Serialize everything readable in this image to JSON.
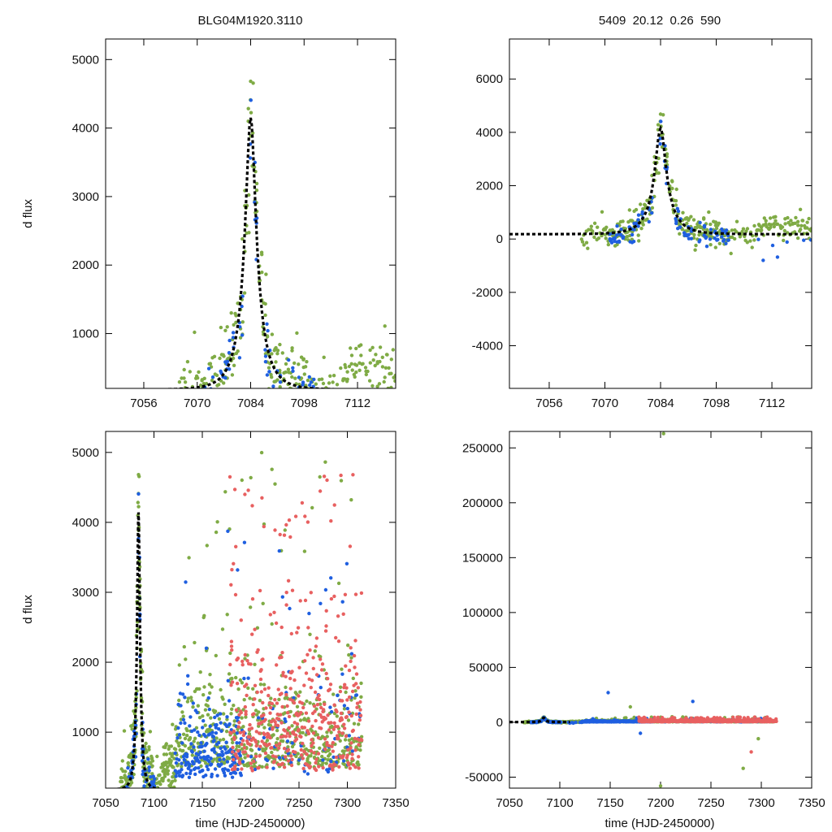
{
  "chart_data": [
    {
      "type": "scatter",
      "title": "BLG04M1920.3110",
      "xlabel": "",
      "ylabel": "d flux",
      "xlim": [
        7046,
        7122
      ],
      "ylim": [
        200,
        5300
      ],
      "xticks": [
        7056,
        7070,
        7084,
        7098,
        7112
      ],
      "yticks": [
        1000,
        2000,
        3000,
        4000,
        5000
      ],
      "series": [
        {
          "name": "blue",
          "color": "#1f5fe0"
        },
        {
          "name": "green",
          "color": "#7fab45"
        }
      ],
      "model": {
        "t0": 7084,
        "u0": 0.26,
        "tE": 5.3,
        "base": 180,
        "peak": 4150
      }
    },
    {
      "type": "scatter",
      "title": "5409  20.12  0.26  590",
      "xlabel": "",
      "ylabel": "",
      "xlim": [
        7046,
        7122
      ],
      "ylim": [
        -5600,
        7500
      ],
      "xticks": [
        7056,
        7070,
        7084,
        7098,
        7112
      ],
      "yticks": [
        -4000,
        -2000,
        0,
        2000,
        4000,
        6000
      ],
      "series": [
        {
          "name": "blue",
          "color": "#1f5fe0"
        },
        {
          "name": "green",
          "color": "#7fab45"
        }
      ],
      "model": {
        "t0": 7084,
        "u0": 0.26,
        "tE": 5.3,
        "base": 180,
        "peak": 4150
      }
    },
    {
      "type": "scatter",
      "title": "",
      "xlabel": "time (HJD-2450000)",
      "ylabel": "d flux",
      "xlim": [
        7050,
        7350
      ],
      "ylim": [
        200,
        5300
      ],
      "xticks": [
        7050,
        7100,
        7150,
        7200,
        7250,
        7300,
        7350
      ],
      "yticks": [
        1000,
        2000,
        3000,
        4000,
        5000
      ],
      "series": [
        {
          "name": "blue",
          "color": "#1f5fe0"
        },
        {
          "name": "green",
          "color": "#7fab45"
        },
        {
          "name": "red",
          "color": "#e86060"
        }
      ],
      "model": {
        "t0": 7084,
        "u0": 0.26,
        "tE": 5.3,
        "base": 180,
        "peak": 4150
      }
    },
    {
      "type": "scatter",
      "title": "",
      "xlabel": "time (HJD-2450000)",
      "ylabel": "",
      "xlim": [
        7050,
        7350
      ],
      "ylim": [
        -60000,
        265000
      ],
      "xticks": [
        7050,
        7100,
        7150,
        7200,
        7250,
        7300,
        7350
      ],
      "yticks": [
        -50000,
        0,
        50000,
        100000,
        150000,
        200000,
        250000
      ],
      "series": [
        {
          "name": "blue",
          "color": "#1f5fe0"
        },
        {
          "name": "green",
          "color": "#7fab45"
        },
        {
          "name": "red",
          "color": "#e86060"
        }
      ],
      "model": {
        "t0": 7084,
        "u0": 0.26,
        "tE": 5.3,
        "base": 180,
        "peak": 4150
      }
    }
  ]
}
